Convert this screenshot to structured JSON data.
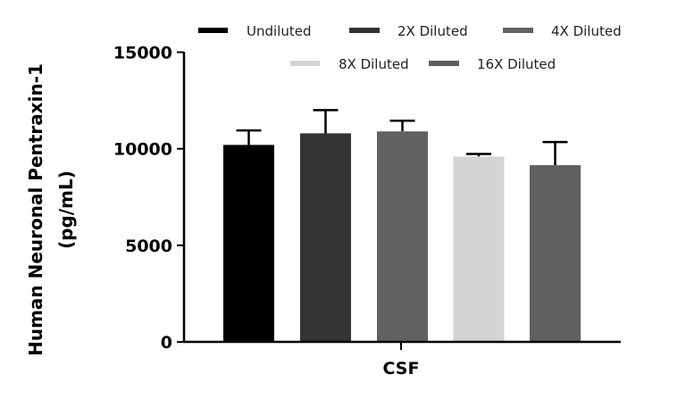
{
  "chart_data": {
    "type": "bar",
    "title": "",
    "xlabel": "",
    "ylabel": "Human Neuronal Pentraxin-1 (pg/mL)",
    "ylabel_lines": [
      "Human Neuronal Pentraxin-1",
      "(pg/mL)"
    ],
    "categories": [
      "CSF"
    ],
    "ylim": [
      0,
      15000
    ],
    "yticks": [
      0,
      5000,
      10000,
      15000
    ],
    "ytick_labels": [
      "0",
      "5000",
      "10000",
      "15000"
    ],
    "grid": false,
    "legend_position": "top",
    "series": [
      {
        "name": "Undiluted",
        "values": [
          10200
        ],
        "error": [
          750
        ],
        "color": "#000000"
      },
      {
        "name": "2X Diluted",
        "values": [
          10800
        ],
        "error": [
          1200
        ],
        "color": "#333333"
      },
      {
        "name": "4X Diluted",
        "values": [
          10900
        ],
        "error": [
          550
        ],
        "color": "#616161"
      },
      {
        "name": "8X Diluted",
        "values": [
          9600
        ],
        "error": [
          130
        ],
        "color": "#d4d4d4"
      },
      {
        "name": "16X Diluted",
        "values": [
          9150
        ],
        "error": [
          1200
        ],
        "color": "#606060"
      }
    ]
  }
}
